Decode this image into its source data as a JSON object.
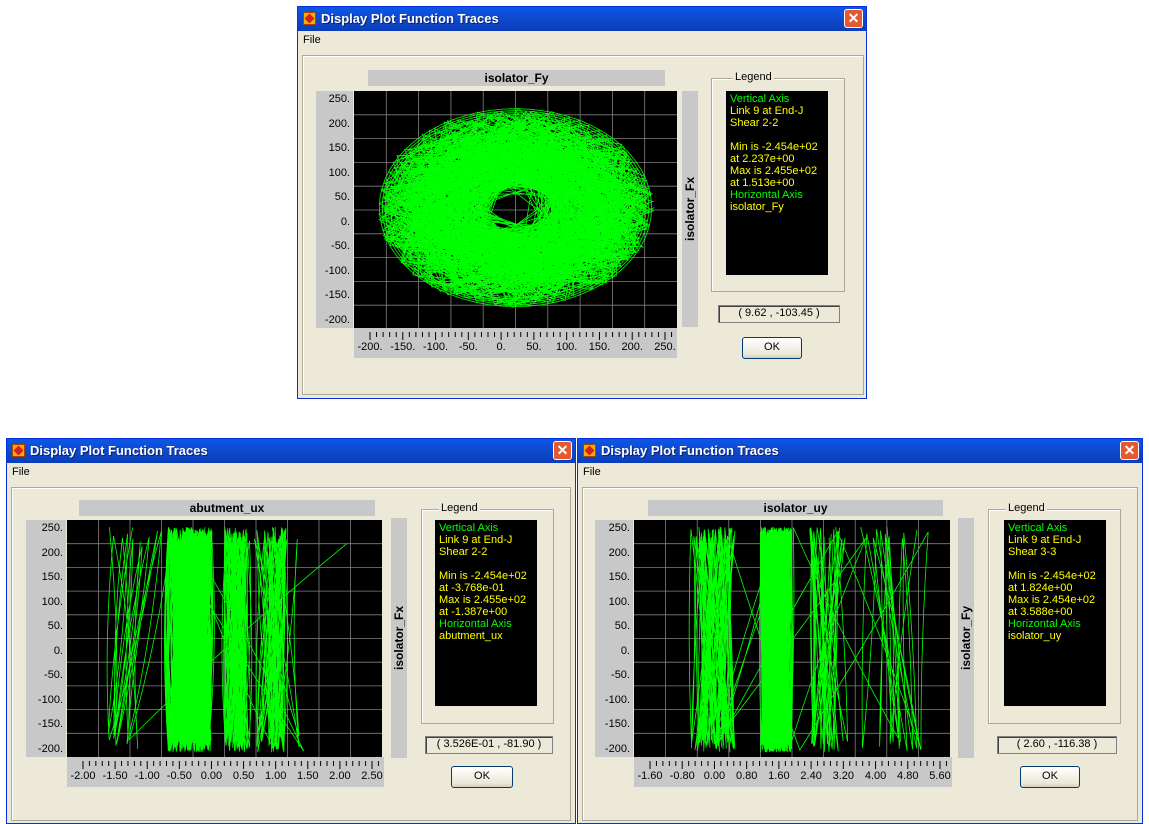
{
  "windows": [
    {
      "title": "Display Plot Function Traces",
      "menu": "File",
      "plot_title": "isolator_Fy",
      "vertical_label": "isolator_Fx",
      "y_ticks": [
        "250.",
        "200.",
        "150.",
        "100.",
        "50.",
        "0.",
        "-50.",
        "-100.",
        "-150.",
        "-200."
      ],
      "x_ticks": [
        "-200.",
        "-150.",
        "-100.",
        "-50.",
        "0.",
        "50.",
        "100.",
        "150.",
        "200.",
        "250."
      ],
      "legend": {
        "caption": "Legend",
        "vertical_axis_label": "Vertical Axis",
        "link": "Link 9 at End-J",
        "component": "Shear 2-2",
        "min": "Min is -2.454e+02",
        "min_at": "at 2.237e+00",
        "max": "Max is 2.455e+02",
        "max_at": "at 1.513e+00",
        "horizontal_axis_label": "Horizontal Axis",
        "horizontal_name": "isolator_Fy"
      },
      "coords": "( 9.62 , -103.45 )",
      "ok": "OK"
    },
    {
      "title": "Display Plot Function Traces",
      "menu": "File",
      "plot_title": "abutment_ux",
      "vertical_label": "isolator_Fx",
      "y_ticks": [
        "250.",
        "200.",
        "150.",
        "100.",
        "50.",
        "0.",
        "-50.",
        "-100.",
        "-150.",
        "-200."
      ],
      "x_ticks": [
        "-2.00",
        "-1.50",
        "-1.00",
        "-0.50",
        "0.00",
        "0.50",
        "1.00",
        "1.50",
        "2.00",
        "2.50"
      ],
      "legend": {
        "caption": "Legend",
        "vertical_axis_label": "Vertical Axis",
        "link": "Link 9 at End-J",
        "component": "Shear 2-2",
        "min": "Min is -2.454e+02",
        "min_at": "at -3.768e-01",
        "max": "Max is 2.455e+02",
        "max_at": "at -1.387e+00",
        "horizontal_axis_label": "Horizontal Axis",
        "horizontal_name": "abutment_ux"
      },
      "coords": "( 3.526E-01 , -81.90 )",
      "ok": "OK"
    },
    {
      "title": "Display Plot Function Traces",
      "menu": "File",
      "plot_title": "isolator_uy",
      "vertical_label": "isolator_Fy",
      "y_ticks": [
        "250.",
        "200.",
        "150.",
        "100.",
        "50.",
        "0.",
        "-50.",
        "-100.",
        "-150.",
        "-200."
      ],
      "x_ticks": [
        "-1.60",
        "-0.80",
        "0.00",
        "0.80",
        "1.60",
        "2.40",
        "3.20",
        "4.00",
        "4.80",
        "5.60"
      ],
      "legend": {
        "caption": "Legend",
        "vertical_axis_label": "Vertical Axis",
        "link": "Link 9 at End-J",
        "component": "Shear 3-3",
        "min": "Min is -2.454e+02",
        "min_at": "at 1.824e+00",
        "max": "Max is 2.454e+02",
        "max_at": "at 3.588e+00",
        "horizontal_axis_label": "Horizontal Axis",
        "horizontal_name": "isolator_uy"
      },
      "coords": "( 2.60 , -116.38 )",
      "ok": "OK"
    }
  ],
  "colors": {
    "trace": "#00ff00",
    "legend_text_green": "#00ff00",
    "legend_text_yellow": "#ffff00",
    "plot_background": "#000000",
    "grid": "#808080",
    "titlebar": "#0a58e8"
  }
}
